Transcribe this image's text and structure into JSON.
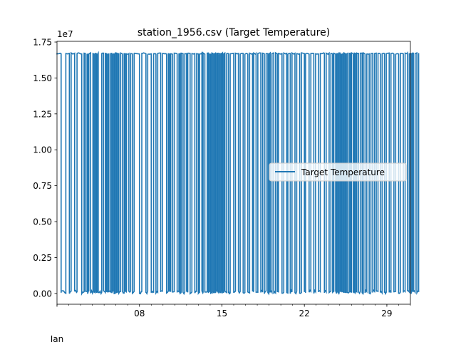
{
  "chart_data": {
    "type": "line",
    "title": "station_1956.csv (Target Temperature)",
    "xlabel": "",
    "ylabel": "",
    "y_offset_label": "1e7",
    "y_scale": 10000000,
    "ylim": [
      -0.075,
      1.755
    ],
    "yticks": [
      0.0,
      0.25,
      0.5,
      0.75,
      1.0,
      1.25,
      1.5,
      1.75
    ],
    "ytick_labels": [
      "0.00",
      "0.25",
      "0.50",
      "0.75",
      "1.00",
      "1.25",
      "1.50",
      "1.75"
    ],
    "xlim": [
      "1956-01-01",
      "1956-01-31"
    ],
    "xticks": [
      "1956-01-08",
      "1956-01-15",
      "1956-01-22",
      "1956-01-29"
    ],
    "xtick_labels": [
      "08",
      "15",
      "22",
      "29"
    ],
    "x_secondary_label": "Jan",
    "legend_position": "center-right",
    "grid": false,
    "series": [
      {
        "name": "Target Temperature",
        "color": "#1f77b4",
        "high_value": 16700000,
        "low_value": 100000,
        "low_intervals_days": [
          [
            0.35,
            0.75
          ],
          [
            1.05,
            1.2
          ],
          [
            1.5,
            1.7
          ],
          [
            2.1,
            2.3
          ],
          [
            2.4,
            2.55
          ],
          [
            2.6,
            2.7
          ],
          [
            2.85,
            3.05
          ],
          [
            3.15,
            3.25
          ],
          [
            3.35,
            3.45
          ],
          [
            3.5,
            3.8
          ],
          [
            3.95,
            4.1
          ],
          [
            4.2,
            4.3
          ],
          [
            4.4,
            4.55
          ],
          [
            4.65,
            4.75
          ],
          [
            4.85,
            4.95
          ],
          [
            5.05,
            5.15
          ],
          [
            5.25,
            5.4
          ],
          [
            5.55,
            5.7
          ],
          [
            5.8,
            5.9
          ],
          [
            6.1,
            6.25
          ],
          [
            6.4,
            6.55
          ],
          [
            7.0,
            7.2
          ],
          [
            7.55,
            7.7
          ],
          [
            8.0,
            8.2
          ],
          [
            8.4,
            8.55
          ],
          [
            8.8,
            8.95
          ],
          [
            9.3,
            9.45
          ],
          [
            9.55,
            9.65
          ],
          [
            9.8,
            9.95
          ],
          [
            10.2,
            10.35
          ],
          [
            10.45,
            10.55
          ],
          [
            10.7,
            10.85
          ],
          [
            11.0,
            11.1
          ],
          [
            11.3,
            11.45
          ],
          [
            11.7,
            11.85
          ],
          [
            12.0,
            12.1
          ],
          [
            12.3,
            12.4
          ],
          [
            12.55,
            12.75
          ],
          [
            12.85,
            12.95
          ],
          [
            13.05,
            13.15
          ],
          [
            13.25,
            13.35
          ],
          [
            13.45,
            13.55
          ],
          [
            13.65,
            13.75
          ],
          [
            13.85,
            13.95
          ],
          [
            14.05,
            14.15
          ],
          [
            14.25,
            14.4
          ],
          [
            14.55,
            14.7
          ],
          [
            15.0,
            15.15
          ],
          [
            15.4,
            15.55
          ],
          [
            15.8,
            15.95
          ],
          [
            16.2,
            16.35
          ],
          [
            16.6,
            16.7
          ],
          [
            16.9,
            17.05
          ],
          [
            17.3,
            17.45
          ],
          [
            17.6,
            17.75
          ],
          [
            17.9,
            18.0
          ],
          [
            18.1,
            18.25
          ],
          [
            18.4,
            18.55
          ],
          [
            18.7,
            18.8
          ],
          [
            19.1,
            19.25
          ],
          [
            19.5,
            19.6
          ],
          [
            19.8,
            19.95
          ],
          [
            20.2,
            20.35
          ],
          [
            20.6,
            20.75
          ],
          [
            21.0,
            21.1
          ],
          [
            21.4,
            21.55
          ],
          [
            21.8,
            21.95
          ],
          [
            22.2,
            22.35
          ],
          [
            22.7,
            22.85
          ],
          [
            23.1,
            23.25
          ],
          [
            23.4,
            23.5
          ],
          [
            23.65,
            23.75
          ],
          [
            23.85,
            23.95
          ],
          [
            24.05,
            24.15
          ],
          [
            24.25,
            24.35
          ],
          [
            24.45,
            24.55
          ],
          [
            24.65,
            24.8
          ],
          [
            24.9,
            25.0
          ],
          [
            25.15,
            25.25
          ],
          [
            25.35,
            25.45
          ],
          [
            25.6,
            25.75
          ],
          [
            25.9,
            26.0
          ],
          [
            26.15,
            26.3
          ],
          [
            26.5,
            26.65
          ],
          [
            26.8,
            26.95
          ],
          [
            27.1,
            27.25
          ],
          [
            27.45,
            27.6
          ],
          [
            27.8,
            27.95
          ],
          [
            28.2,
            28.35
          ],
          [
            28.6,
            28.75
          ],
          [
            29.0,
            29.15
          ],
          [
            29.4,
            29.55
          ],
          [
            29.75,
            29.9
          ],
          [
            30.05,
            30.15
          ],
          [
            30.25,
            30.4
          ],
          [
            30.55,
            30.7
          ]
        ]
      }
    ]
  }
}
